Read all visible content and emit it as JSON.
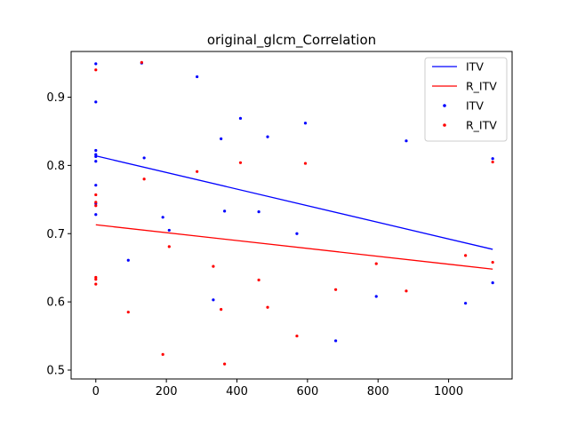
{
  "chart_data": {
    "type": "scatter",
    "title": "original_glcm_Correlation",
    "xlabel": "",
    "ylabel": "",
    "xlim": [
      -70,
      1180
    ],
    "ylim": [
      0.487,
      0.967
    ],
    "xticks": [
      0,
      200,
      400,
      600,
      800,
      1000
    ],
    "yticks": [
      0.5,
      0.6,
      0.7,
      0.8,
      0.9
    ],
    "xtick_labels": [
      "0",
      "200",
      "400",
      "600",
      "800",
      "1000"
    ],
    "ytick_labels": [
      "0.5",
      "0.6",
      "0.7",
      "0.8",
      "0.9"
    ],
    "grid": false,
    "legend_position": "top-right",
    "legend": [
      {
        "label": "ITV",
        "kind": "line",
        "color": "#0000ff"
      },
      {
        "label": "R_ITV",
        "kind": "line",
        "color": "#ff0000"
      },
      {
        "label": "ITV",
        "kind": "point",
        "color": "#0000ff"
      },
      {
        "label": "R_ITV",
        "kind": "point",
        "color": "#ff0000"
      }
    ],
    "fit_lines": [
      {
        "name": "ITV",
        "color": "#0000ff",
        "x": [
          0,
          1125
        ],
        "y": [
          0.814,
          0.677
        ]
      },
      {
        "name": "R_ITV",
        "color": "#ff0000",
        "x": [
          0,
          1125
        ],
        "y": [
          0.713,
          0.648
        ]
      }
    ],
    "series": [
      {
        "name": "ITV",
        "color": "#0000ff",
        "points": [
          [
            0,
            0.949
          ],
          [
            0,
            0.893
          ],
          [
            0,
            0.822
          ],
          [
            0,
            0.816
          ],
          [
            0,
            0.813
          ],
          [
            0,
            0.806
          ],
          [
            0,
            0.771
          ],
          [
            0,
            0.744
          ],
          [
            0,
            0.728
          ],
          [
            92,
            0.661
          ],
          [
            130,
            0.95
          ],
          [
            137,
            0.811
          ],
          [
            190,
            0.724
          ],
          [
            208,
            0.705
          ],
          [
            287,
            0.93
          ],
          [
            333,
            0.603
          ],
          [
            355,
            0.839
          ],
          [
            365,
            0.733
          ],
          [
            410,
            0.869
          ],
          [
            462,
            0.732
          ],
          [
            487,
            0.842
          ],
          [
            570,
            0.7
          ],
          [
            594,
            0.862
          ],
          [
            680,
            0.543
          ],
          [
            795,
            0.608
          ],
          [
            880,
            0.836
          ],
          [
            1048,
            0.598
          ],
          [
            1125,
            0.81
          ],
          [
            1125,
            0.628
          ]
        ]
      },
      {
        "name": "R_ITV",
        "color": "#ff0000",
        "points": [
          [
            0,
            0.94
          ],
          [
            0,
            0.757
          ],
          [
            0,
            0.746
          ],
          [
            0,
            0.741
          ],
          [
            0,
            0.636
          ],
          [
            0,
            0.633
          ],
          [
            0,
            0.626
          ],
          [
            92,
            0.585
          ],
          [
            130,
            0.951
          ],
          [
            137,
            0.78
          ],
          [
            190,
            0.523
          ],
          [
            208,
            0.681
          ],
          [
            287,
            0.791
          ],
          [
            333,
            0.652
          ],
          [
            355,
            0.589
          ],
          [
            365,
            0.509
          ],
          [
            410,
            0.804
          ],
          [
            462,
            0.632
          ],
          [
            487,
            0.592
          ],
          [
            570,
            0.55
          ],
          [
            594,
            0.803
          ],
          [
            680,
            0.618
          ],
          [
            795,
            0.656
          ],
          [
            880,
            0.616
          ],
          [
            1048,
            0.668
          ],
          [
            1125,
            0.805
          ],
          [
            1125,
            0.658
          ]
        ]
      }
    ]
  }
}
